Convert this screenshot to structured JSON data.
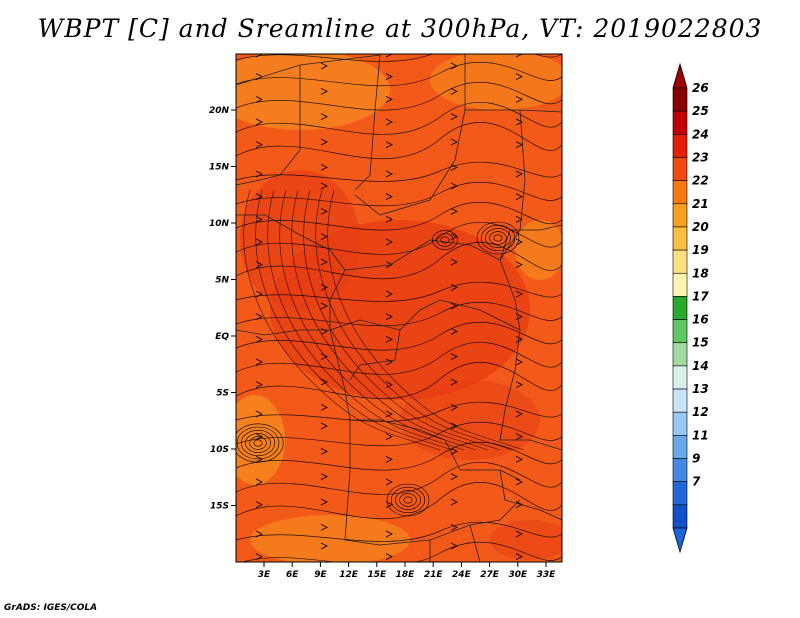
{
  "title": "WBPT [C] and Sreamline at 300hPa, VT: 2019022803",
  "credit": "GrADS: IGES/COLA",
  "map": {
    "lat_ticks": [
      "20N",
      "15N",
      "10N",
      "5N",
      "EQ",
      "5S",
      "10S",
      "15S"
    ],
    "lon_ticks": [
      "3E",
      "6E",
      "9E",
      "12E",
      "15E",
      "18E",
      "21E",
      "24E",
      "27E",
      "30E",
      "33E"
    ]
  },
  "colorbar": {
    "labels": [
      "26",
      "25",
      "24",
      "23",
      "22",
      "21",
      "20",
      "19",
      "18",
      "17",
      "16",
      "15",
      "14",
      "13",
      "12",
      "11",
      "9",
      "7"
    ],
    "colors": [
      "#8b0000",
      "#c30000",
      "#e12000",
      "#f04c10",
      "#f47a10",
      "#f8a020",
      "#fbc040",
      "#fde080",
      "#fff5b0",
      "#2aa82a",
      "#60c860",
      "#a0dca0",
      "#d8f0ec",
      "#c8e4f8",
      "#98c8f4",
      "#6aa8ee",
      "#4288e4",
      "#2068d8",
      "#1050c8"
    ],
    "top_arrow_color": "#a00000",
    "bottom_arrow_color": "#1e64dc"
  },
  "field_colors": {
    "base": "#f35a1a",
    "warm": "#e63a14",
    "cool": "#f6901e"
  }
}
